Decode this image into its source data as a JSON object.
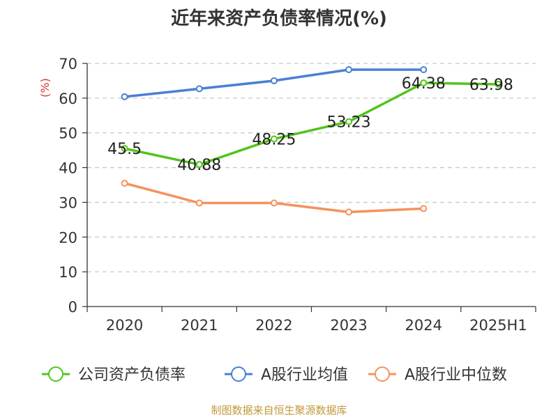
{
  "chart_data": {
    "type": "line",
    "title": "近年来资产负债率情况(%)",
    "ylabel": "(%)",
    "categories": [
      "2020",
      "2021",
      "2022",
      "2023",
      "2024",
      "2025H1"
    ],
    "yticks": [
      "0",
      "10",
      "20",
      "30",
      "40",
      "50",
      "60",
      "70"
    ],
    "ylim": [
      0,
      70
    ],
    "series": [
      {
        "name": "公司资产负债率",
        "color": "#52c41a",
        "values": [
          45.5,
          40.88,
          48.25,
          53.23,
          64.38,
          63.98
        ],
        "labels": [
          "45.5",
          "40.88",
          "48.25",
          "53.23",
          "64.38",
          "63.98"
        ]
      },
      {
        "name": "A股行业均值",
        "color": "#4a7fd4",
        "values": [
          60.4,
          62.7,
          65.0,
          68.2,
          68.2,
          null
        ]
      },
      {
        "name": "A股行业中位数",
        "color": "#f5925e",
        "values": [
          35.5,
          29.8,
          29.8,
          27.2,
          28.2,
          null
        ]
      }
    ]
  },
  "footer": {
    "source": "制图数据来自恒生聚源数据库"
  }
}
